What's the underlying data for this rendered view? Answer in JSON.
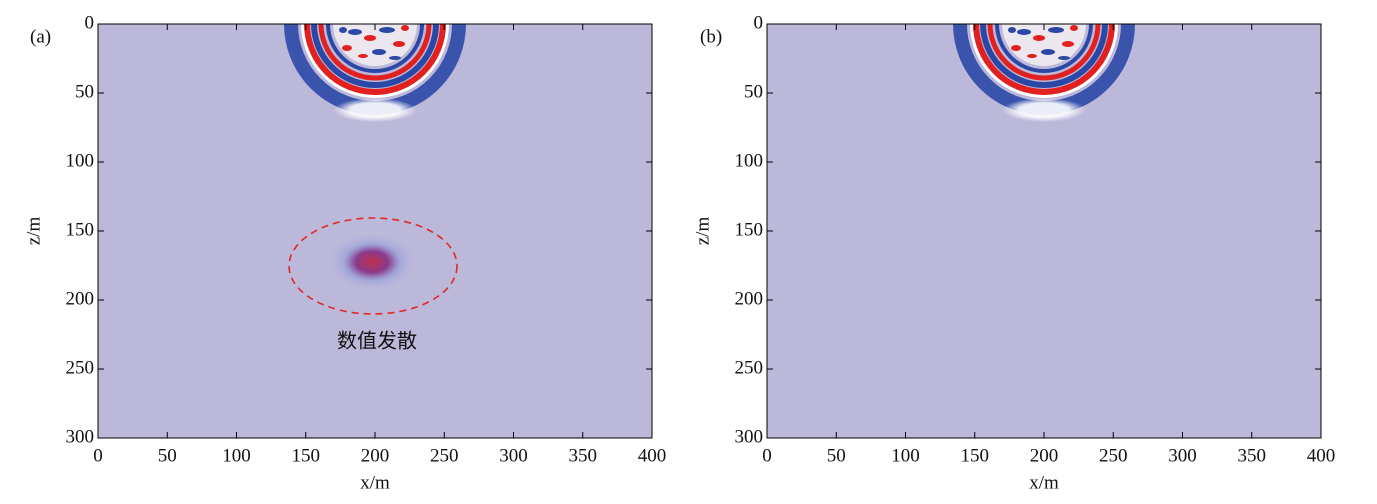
{
  "chart_data": [
    {
      "type": "heatmap",
      "panel_label": "(a)",
      "annotation": "数值发散",
      "xlabel": "x/m",
      "ylabel": "z/m",
      "xlim": [
        0,
        400
      ],
      "ylim": [
        0,
        300
      ],
      "y_inverted": true,
      "xticks": [
        0,
        50,
        100,
        150,
        200,
        250,
        300,
        350,
        400
      ],
      "yticks": [
        0,
        50,
        100,
        150,
        200,
        250,
        300
      ]
    },
    {
      "type": "heatmap",
      "panel_label": "(b)",
      "xlabel": "x/m",
      "ylabel": "z/m",
      "xlim": [
        0,
        400
      ],
      "ylim": [
        0,
        300
      ],
      "y_inverted": true,
      "xticks": [
        0,
        50,
        100,
        150,
        200,
        250,
        300,
        350,
        400
      ],
      "yticks": [
        0,
        50,
        100,
        150,
        200,
        250,
        300
      ]
    }
  ]
}
